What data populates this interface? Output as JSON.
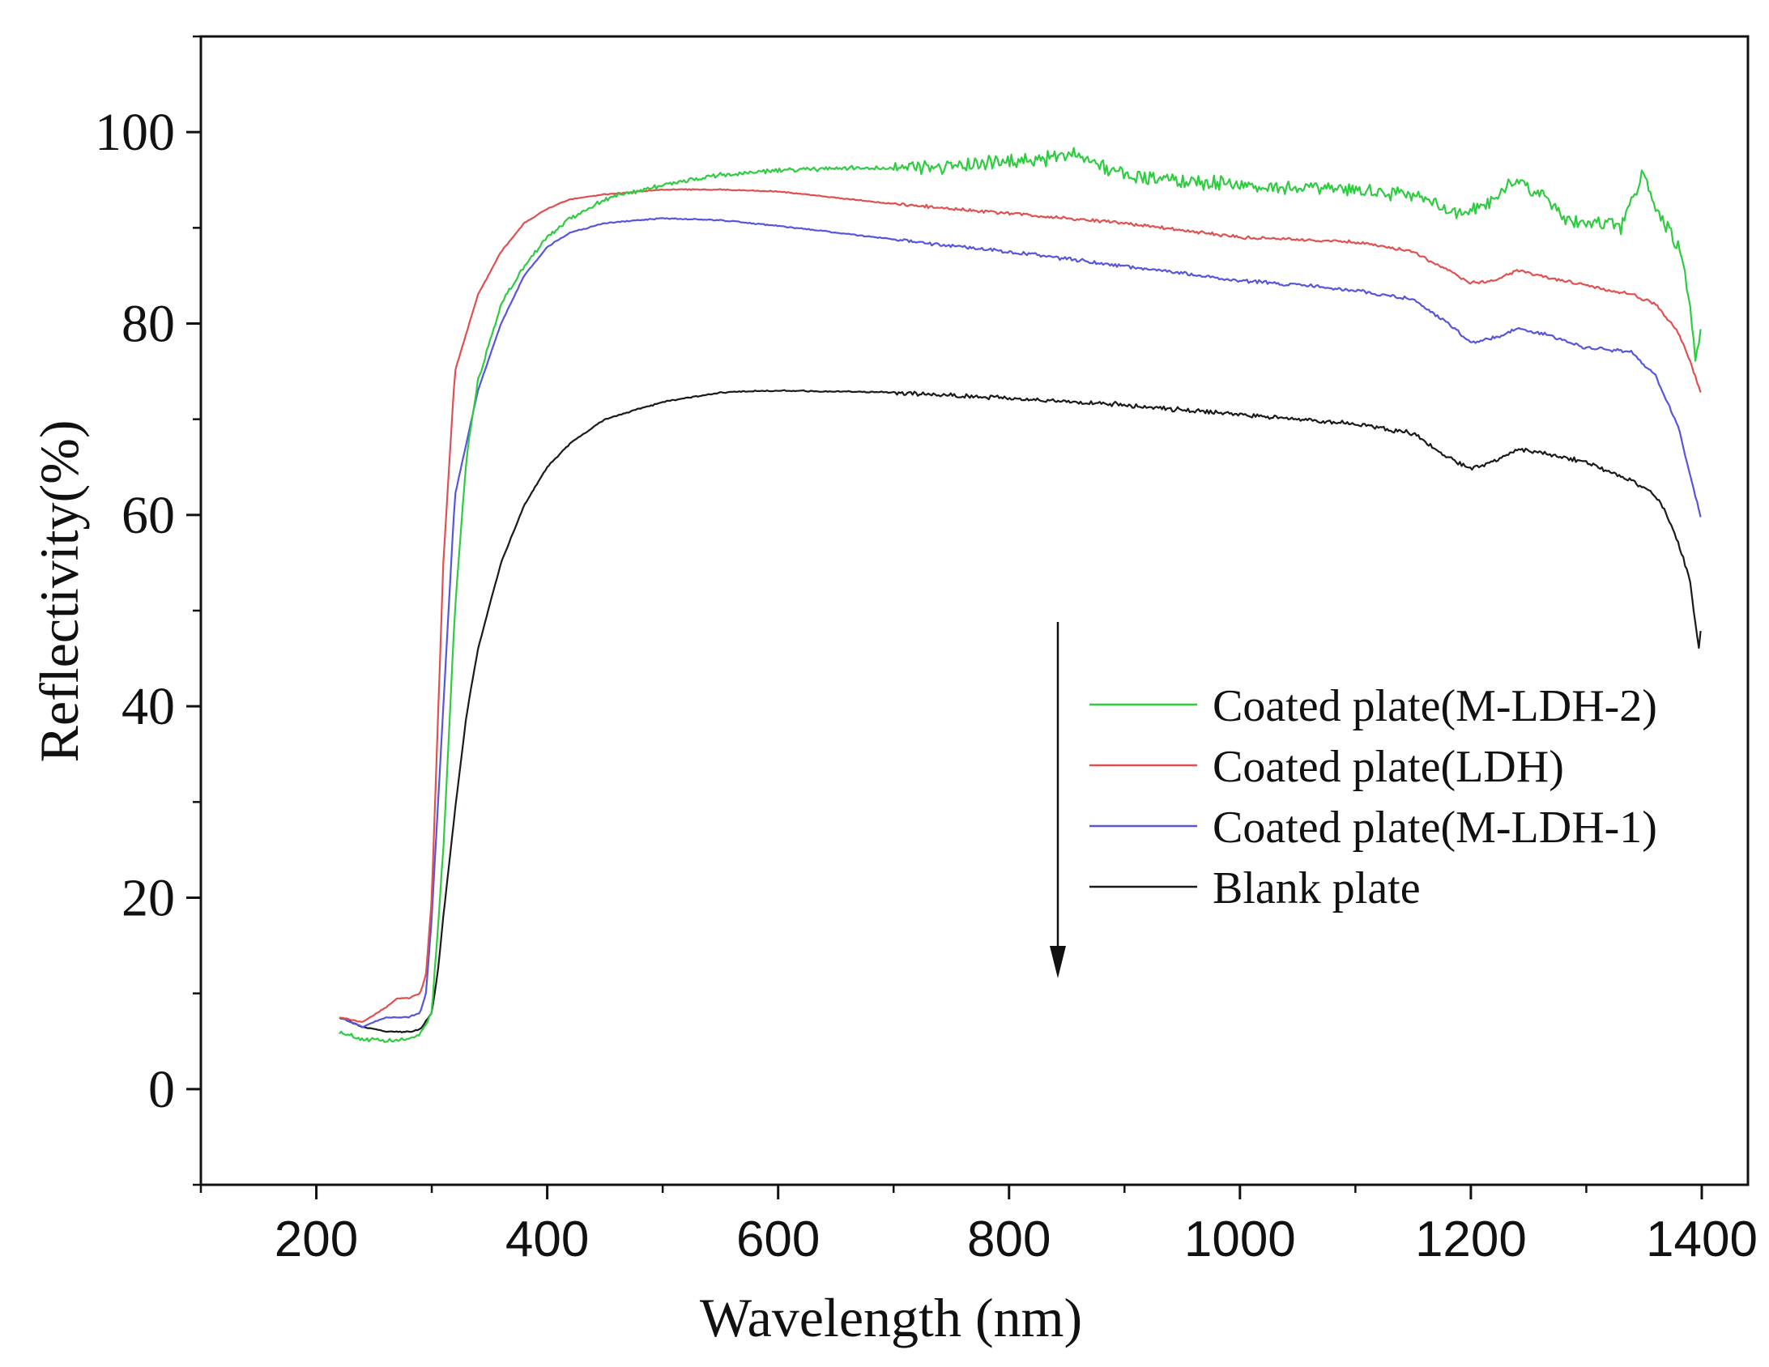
{
  "chart_data": {
    "type": "line",
    "title": "",
    "xlabel": "Wavelength (nm)",
    "ylabel": "Reflectivity(%)",
    "xlim": [
      100,
      1440
    ],
    "ylim": [
      -10,
      110
    ],
    "xticks": [
      200,
      400,
      600,
      800,
      1000,
      1200,
      1400
    ],
    "yticks": [
      0,
      20,
      40,
      60,
      80,
      100
    ],
    "grid": false,
    "legend_position": "center-right",
    "annotation": "downward arrow at x=850 from ~48 to ~12",
    "series": [
      {
        "name": "Coated plate(M-LDH-2)",
        "color": "#2ecc40",
        "noise": 1.2,
        "x": [
          220,
          240,
          260,
          280,
          290,
          300,
          310,
          320,
          330,
          340,
          360,
          380,
          400,
          420,
          450,
          500,
          550,
          600,
          650,
          700,
          750,
          800,
          850,
          860,
          880,
          900,
          950,
          1000,
          1050,
          1100,
          1150,
          1180,
          1200,
          1220,
          1240,
          1260,
          1280,
          1300,
          1330,
          1350,
          1360,
          1380,
          1390,
          1395,
          1400
        ],
        "y": [
          6,
          5.2,
          5,
          5.2,
          5.8,
          8,
          25,
          50,
          66,
          74,
          82,
          86,
          89,
          91,
          93,
          94.5,
          95.5,
          96,
          96.2,
          96.3,
          96.5,
          96.8,
          97.5,
          98,
          96.5,
          95.5,
          95,
          94.5,
          94,
          94,
          93.5,
          92,
          91.5,
          93,
          95,
          93.5,
          91,
          90.5,
          90,
          96,
          92,
          88,
          82,
          76,
          80
        ]
      },
      {
        "name": "Coated plate(LDH)",
        "color": "#e05050",
        "noise": 0.25,
        "x": [
          220,
          240,
          260,
          270,
          280,
          290,
          295,
          300,
          310,
          320,
          340,
          360,
          380,
          400,
          420,
          450,
          500,
          550,
          600,
          700,
          800,
          900,
          1000,
          1100,
          1150,
          1180,
          1200,
          1220,
          1240,
          1260,
          1300,
          1340,
          1360,
          1380,
          1390,
          1400
        ],
        "y": [
          7.5,
          7,
          8.5,
          9.5,
          9.5,
          10,
          12,
          20,
          55,
          75,
          83,
          87.5,
          90.5,
          92,
          93,
          93.5,
          94,
          94,
          93.8,
          92.5,
          91.5,
          90.5,
          89,
          88.5,
          87.5,
          85.5,
          84.2,
          84.5,
          85.5,
          85,
          84,
          83,
          82,
          79,
          76,
          72.5
        ]
      },
      {
        "name": "Coated plate(M-LDH-1)",
        "color": "#5555dd",
        "noise": 0.3,
        "x": [
          220,
          240,
          260,
          280,
          290,
          295,
          300,
          310,
          320,
          340,
          360,
          380,
          400,
          420,
          450,
          500,
          550,
          600,
          700,
          800,
          900,
          1000,
          1100,
          1150,
          1180,
          1200,
          1220,
          1240,
          1260,
          1300,
          1340,
          1360,
          1380,
          1390,
          1400
        ],
        "y": [
          7.5,
          6.5,
          7.5,
          7.5,
          8,
          10,
          18,
          40,
          62,
          73,
          80,
          85,
          88,
          89.5,
          90.5,
          91,
          90.8,
          90.2,
          88.8,
          87.5,
          86,
          84.5,
          83.5,
          82.5,
          80,
          78,
          78.5,
          79.5,
          79,
          77.5,
          77,
          74.5,
          69,
          64,
          59.5
        ]
      },
      {
        "name": "Blank plate",
        "color": "#1a1a1a",
        "noise": 0.35,
        "x": [
          220,
          240,
          260,
          280,
          290,
          300,
          305,
          310,
          320,
          330,
          340,
          360,
          380,
          400,
          420,
          450,
          500,
          550,
          600,
          700,
          800,
          900,
          1000,
          1100,
          1150,
          1180,
          1200,
          1220,
          1240,
          1260,
          1300,
          1340,
          1360,
          1370,
          1380,
          1390,
          1395,
          1398,
          1400
        ],
        "y": [
          7.5,
          6.5,
          6,
          6,
          6.2,
          8,
          12,
          18,
          29,
          39,
          46,
          55,
          61,
          65,
          67.5,
          70,
          71.8,
          72.8,
          73,
          72.8,
          72.2,
          71.5,
          70.5,
          69.5,
          68.5,
          66,
          64.8,
          65.5,
          66.8,
          66.5,
          65.5,
          63.5,
          62,
          60,
          57,
          53,
          48,
          46,
          50
        ]
      }
    ]
  },
  "legend": {
    "items": [
      {
        "label": "Coated plate(M-LDH-2)",
        "color": "#2ecc40"
      },
      {
        "label": "Coated plate(LDH)",
        "color": "#e05050"
      },
      {
        "label": "Coated plate(M-LDH-1)",
        "color": "#5555dd"
      },
      {
        "label": "Blank plate",
        "color": "#1a1a1a"
      }
    ]
  }
}
